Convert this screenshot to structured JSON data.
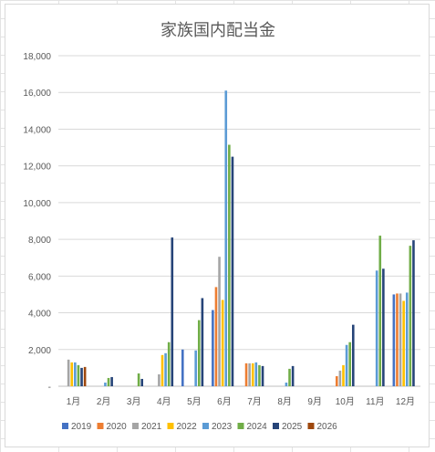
{
  "chart_data": {
    "type": "bar",
    "title": "家族国内配当金",
    "xlabel": "",
    "ylabel": "",
    "ylim": [
      0,
      18000
    ],
    "yticks": [
      0,
      2000,
      4000,
      6000,
      8000,
      10000,
      12000,
      14000,
      16000,
      18000
    ],
    "ytick_labels": [
      "-",
      "2,000",
      "4,000",
      "6,000",
      "8,000",
      "10,000",
      "12,000",
      "14,000",
      "16,000",
      "18,000"
    ],
    "grid": true,
    "legend_position": "bottom",
    "categories": [
      "1月",
      "2月",
      "3月",
      "4月",
      "5月",
      "6月",
      "7月",
      "8月",
      "9月",
      "10月",
      "11月",
      "12月"
    ],
    "series": [
      {
        "name": "2019",
        "color": "#4472C4",
        "values": [
          0,
          0,
          0,
          0,
          2000,
          4150,
          0,
          0,
          0,
          0,
          0,
          5000
        ]
      },
      {
        "name": "2020",
        "color": "#ED7D31",
        "values": [
          0,
          0,
          0,
          0,
          0,
          5400,
          1250,
          0,
          0,
          550,
          0,
          5050
        ]
      },
      {
        "name": "2021",
        "color": "#A5A5A5",
        "values": [
          1450,
          0,
          0,
          650,
          0,
          7050,
          1250,
          0,
          0,
          850,
          0,
          5050
        ]
      },
      {
        "name": "2022",
        "color": "#FFC000",
        "values": [
          1300,
          0,
          0,
          1700,
          0,
          4700,
          1250,
          0,
          0,
          1150,
          0,
          4650
        ]
      },
      {
        "name": "2023",
        "color": "#5B9BD5",
        "values": [
          1300,
          200,
          0,
          1800,
          1950,
          16100,
          1300,
          200,
          0,
          2250,
          6300,
          5100
        ]
      },
      {
        "name": "2024",
        "color": "#70AD47",
        "values": [
          1150,
          450,
          700,
          2400,
          3600,
          13150,
          1150,
          950,
          0,
          2400,
          8200,
          7650
        ]
      },
      {
        "name": "2025",
        "color": "#264478",
        "values": [
          1000,
          500,
          400,
          8100,
          4800,
          12500,
          1100,
          1100,
          0,
          3350,
          6400,
          7950
        ]
      },
      {
        "name": "2026",
        "color": "#9E480E",
        "values": [
          1050,
          0,
          0,
          0,
          0,
          0,
          0,
          0,
          0,
          0,
          0,
          0
        ]
      }
    ]
  }
}
